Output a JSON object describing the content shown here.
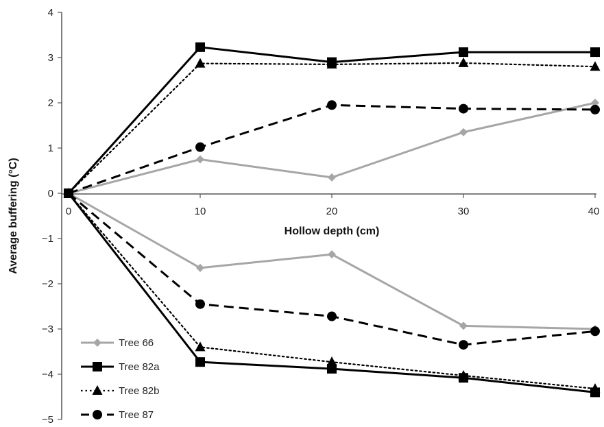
{
  "chart_data": {
    "type": "line",
    "xlabel": "Hollow depth (cm)",
    "ylabel": "Average buffering (°C)",
    "x": [
      0,
      10,
      20,
      30,
      40
    ],
    "xticks": [
      "0",
      "10",
      "20",
      "30",
      "40"
    ],
    "yticks": [
      "4",
      "3",
      "2",
      "1",
      "0",
      "−1",
      "−2",
      "−3",
      "−4",
      "−5"
    ],
    "ylim": [
      -5,
      4
    ],
    "xlim": [
      0,
      40
    ],
    "grid": false,
    "legend_position": "bottom-left",
    "series": [
      {
        "name": "Tree 66",
        "color": "#a6a6a6",
        "marker": "diamond",
        "line": "solid",
        "upper": [
          0,
          0.75,
          0.35,
          1.35,
          2.0
        ],
        "lower": [
          0,
          -1.65,
          -1.35,
          -2.93,
          -3.0
        ]
      },
      {
        "name": "Tree 82a",
        "color": "#000000",
        "marker": "square",
        "line": "solid",
        "upper": [
          0,
          3.23,
          2.9,
          3.12,
          3.12
        ],
        "lower": [
          0,
          -3.73,
          -3.88,
          -4.08,
          -4.4
        ]
      },
      {
        "name": "Tree 82b",
        "color": "#000000",
        "marker": "triangle",
        "line": "dotted",
        "upper": [
          0,
          2.87,
          2.85,
          2.88,
          2.8
        ],
        "lower": [
          0,
          -3.4,
          -3.73,
          -4.03,
          -4.32
        ]
      },
      {
        "name": "Tree 87",
        "color": "#000000",
        "marker": "circle",
        "line": "dashed",
        "upper": [
          0,
          1.02,
          1.95,
          1.87,
          1.85
        ],
        "lower": [
          0,
          -2.45,
          -2.72,
          -3.35,
          -3.05
        ]
      }
    ]
  }
}
